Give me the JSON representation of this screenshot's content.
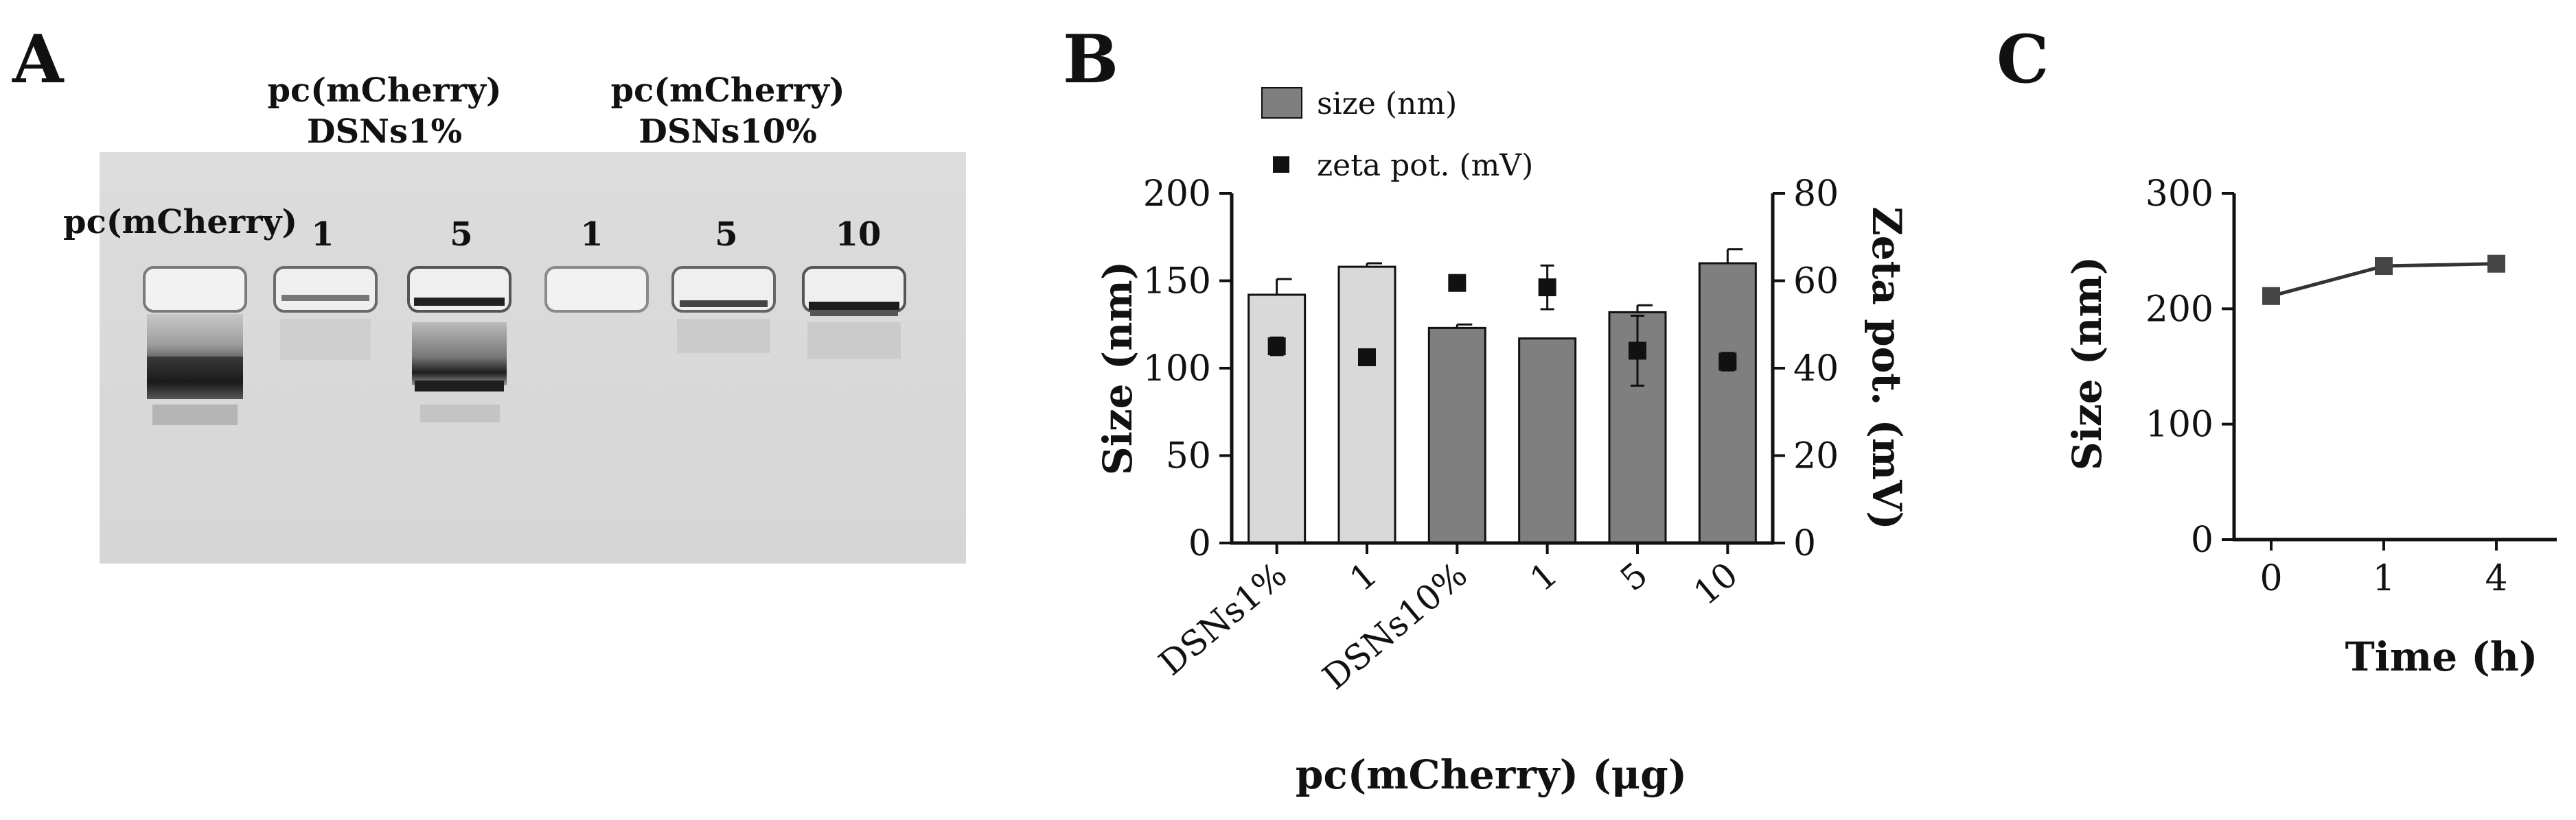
{
  "panels": {
    "a": {
      "letter": "A",
      "lane_label": "pc(mCherry)",
      "group1": {
        "line1": "pc(mCherry)",
        "line2": "DSNs1%",
        "lanes": [
          "1",
          "5"
        ]
      },
      "group2": {
        "line1": "pc(mCherry)",
        "line2": "DSNs10%",
        "lanes": [
          "1",
          "5",
          "10"
        ]
      }
    },
    "b": {
      "letter": "B"
    },
    "c": {
      "letter": "C"
    }
  },
  "chart_data": [
    {
      "type": "bar",
      "panel": "B",
      "categories": [
        "DSNs1%",
        "1",
        "DSNs10%",
        "1",
        "5",
        "10"
      ],
      "series": [
        {
          "name": "size (nm)",
          "axis": "left",
          "values": [
            142,
            158,
            123,
            117,
            132,
            160
          ],
          "errors": [
            9,
            2,
            2,
            0,
            4,
            8
          ],
          "colors": [
            "#d9d9d9",
            "#d9d9d9",
            "#7f7f7f",
            "#7f7f7f",
            "#7f7f7f",
            "#7f7f7f"
          ]
        },
        {
          "name": "zeta pot. (mV)",
          "axis": "right",
          "type": "scatter",
          "values": [
            45,
            42.5,
            59.5,
            58.5,
            44,
            41.5
          ],
          "errors": [
            2,
            0,
            0,
            5,
            8,
            2
          ]
        }
      ],
      "ylabel": "Size (nm)",
      "ylim": [
        0,
        200
      ],
      "yticks": [
        "0",
        "50",
        "100",
        "150",
        "200"
      ],
      "y2label": "Zeta pot. (mV)",
      "y2lim": [
        0,
        80
      ],
      "y2ticks": [
        "0",
        "20",
        "40",
        "60",
        "80"
      ],
      "xlabel": "pc(mCherry) (μg)",
      "legend": [
        "size (nm)",
        "zeta pot. (mV)"
      ],
      "legend_position": "top"
    },
    {
      "type": "line",
      "panel": "C",
      "x": [
        0,
        1,
        4
      ],
      "xticks": [
        "0",
        "1",
        "4"
      ],
      "values": [
        211,
        237,
        239
      ],
      "errors": [
        3,
        3,
        5
      ],
      "xlabel": "Time (h)",
      "ylabel": "Size (nm)",
      "ylim": [
        0,
        300
      ],
      "yticks": [
        "0",
        "100",
        "200",
        "300"
      ]
    }
  ]
}
